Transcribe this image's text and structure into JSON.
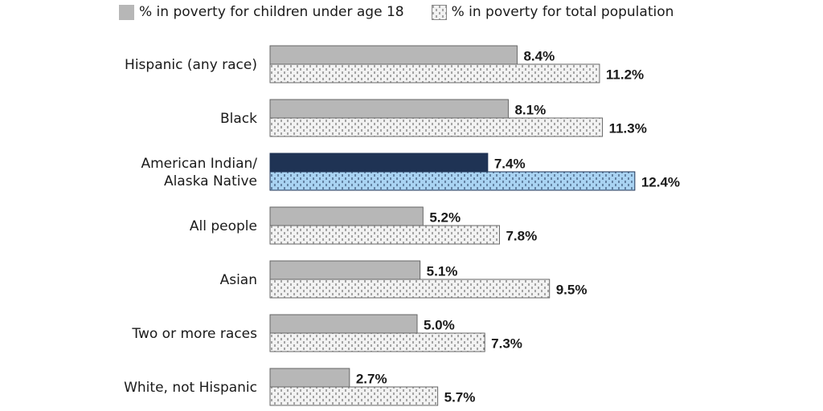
{
  "chart_data": {
    "type": "bar",
    "orientation": "horizontal",
    "title": "",
    "xlabel": "",
    "ylabel": "",
    "xlim": [
      0,
      12.4
    ],
    "grid": false,
    "legend_position": "top",
    "categories": [
      [
        "Hispanic (any race)"
      ],
      [
        "Black"
      ],
      [
        "American Indian/",
        "Alaska Native"
      ],
      [
        "All people"
      ],
      [
        "Asian"
      ],
      [
        "Two or more races"
      ],
      [
        "White, not Hispanic"
      ]
    ],
    "highlight_category_index": 2,
    "series": [
      {
        "name": "% in poverty for children under age 18",
        "values": [
          8.4,
          8.1,
          7.4,
          5.2,
          5.1,
          5.0,
          2.7
        ],
        "labels": [
          "8.4%",
          "8.1%",
          "7.4%",
          "5.2%",
          "5.1%",
          "5.0%",
          "2.7%"
        ],
        "color": "#b7b7b7",
        "highlight_color": "#1f3354"
      },
      {
        "name": "% in poverty for total population",
        "values": [
          11.2,
          11.3,
          12.4,
          7.8,
          9.5,
          7.3,
          5.7
        ],
        "labels": [
          "11.2%",
          "11.3%",
          "12.4%",
          "7.8%",
          "9.5%",
          "7.3%",
          "5.7%"
        ],
        "color": "#f2f2f2",
        "highlight_color": "#a9d3f2"
      }
    ]
  },
  "legend": {
    "children_label": "% in poverty for children under age 18",
    "total_label": "% in poverty for total population"
  }
}
